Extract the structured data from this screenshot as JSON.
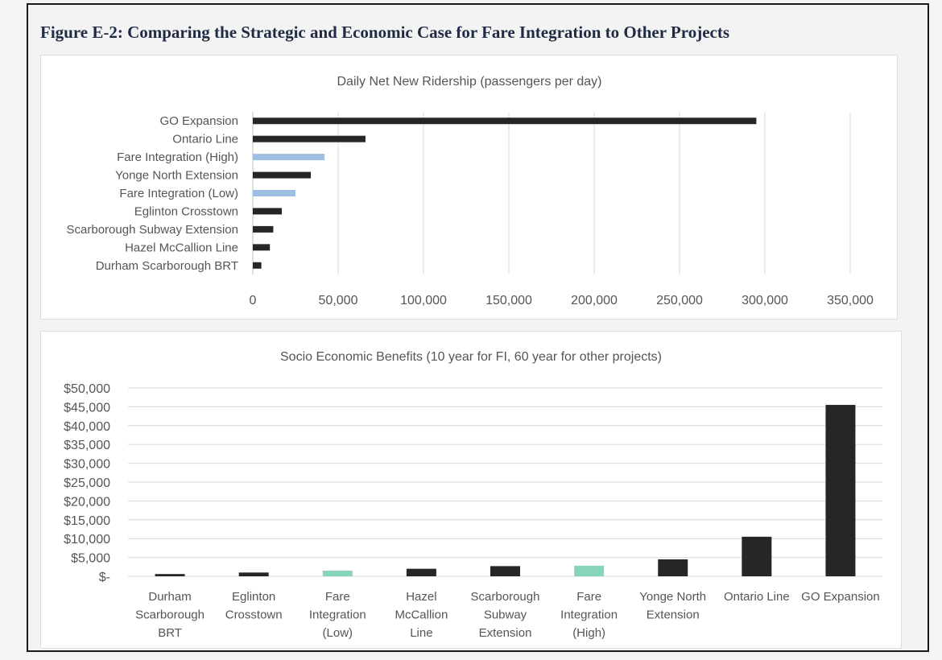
{
  "figure": {
    "title": "Figure E-2: Comparing the Strategic and Economic Case for Fare Integration to Other Projects"
  },
  "colors": {
    "dark_bar": "#262626",
    "fare_high_low_blue": "#9dbfe3",
    "fare_green": "#88d4b8",
    "gridline": "#d9d9d9"
  },
  "chart_data": [
    {
      "type": "bar",
      "orientation": "horizontal",
      "title": "Daily Net New Ridership (passengers per day)",
      "categories": [
        "GO Expansion",
        "Ontario Line",
        "Fare Integration (High)",
        "Yonge North Extension",
        "Fare Integration (Low)",
        "Eglinton Crosstown",
        "Scarborough Subway Extension",
        "Hazel McCallion Line",
        "Durham Scarborough BRT"
      ],
      "values": [
        295000,
        66000,
        42000,
        34000,
        25000,
        17000,
        12000,
        10000,
        5000
      ],
      "bar_colors": [
        "#262626",
        "#262626",
        "#9dbfe3",
        "#262626",
        "#9dbfe3",
        "#262626",
        "#262626",
        "#262626",
        "#262626"
      ],
      "xlim": [
        0,
        350000
      ],
      "xticks": [
        0,
        50000,
        100000,
        150000,
        200000,
        250000,
        300000,
        350000
      ],
      "xtick_labels": [
        "0",
        "50,000",
        "100,000",
        "150,000",
        "200,000",
        "250,000",
        "300,000",
        "350,000"
      ],
      "grid": true,
      "legend": "none"
    },
    {
      "type": "bar",
      "orientation": "vertical",
      "title": "Socio Economic Benefits (10 year for FI, 60 year for other projects)",
      "categories": [
        [
          "Durham",
          "Scarborough",
          "BRT"
        ],
        [
          "Eglinton",
          "Crosstown"
        ],
        [
          "Fare",
          "Integration",
          "(Low)"
        ],
        [
          "Hazel",
          "McCallion",
          "Line"
        ],
        [
          "Scarborough",
          "Subway",
          "Extension"
        ],
        [
          "Fare",
          "Integration",
          "(High)"
        ],
        [
          "Yonge North",
          "Extension"
        ],
        [
          "Ontario Line"
        ],
        [
          "GO Expansion"
        ]
      ],
      "values": [
        600,
        1000,
        1500,
        2000,
        2700,
        2800,
        4500,
        10500,
        45500
      ],
      "bar_colors": [
        "#262626",
        "#262626",
        "#88d4b8",
        "#262626",
        "#262626",
        "#88d4b8",
        "#262626",
        "#262626",
        "#262626"
      ],
      "ylim": [
        0,
        50000
      ],
      "yticks": [
        0,
        5000,
        10000,
        15000,
        20000,
        25000,
        30000,
        35000,
        40000,
        45000,
        50000
      ],
      "ytick_labels": [
        "$-",
        "$5,000",
        "$10,000",
        "$15,000",
        "$20,000",
        "$25,000",
        "$30,000",
        "$35,000",
        "$40,000",
        "$45,000",
        "$50,000"
      ],
      "grid": true,
      "legend": "none"
    }
  ]
}
